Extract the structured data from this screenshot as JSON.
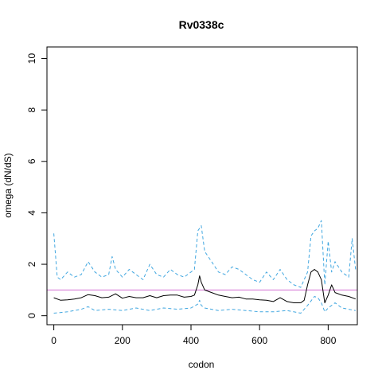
{
  "chart_data": {
    "type": "line",
    "title": "Rv0338c",
    "xlabel": "codon",
    "ylabel": "omega (dN/dS)",
    "xlim": [
      -20,
      885
    ],
    "ylim": [
      -0.35,
      10.45
    ],
    "xticks": [
      0,
      200,
      400,
      600,
      800
    ],
    "yticks": [
      0,
      2,
      4,
      6,
      8,
      10
    ],
    "reference_line": {
      "y": 1,
      "color": "#d36fd3"
    },
    "series": [
      {
        "role": "estimate",
        "color": "#000000",
        "style": "solid",
        "x": [
          0,
          20,
          40,
          60,
          80,
          100,
          120,
          140,
          160,
          180,
          200,
          220,
          240,
          260,
          280,
          300,
          320,
          340,
          360,
          380,
          400,
          410,
          420,
          425,
          430,
          440,
          460,
          480,
          500,
          520,
          540,
          560,
          580,
          600,
          620,
          640,
          660,
          680,
          700,
          720,
          730,
          740,
          750,
          760,
          770,
          780,
          790,
          800,
          810,
          820,
          840,
          860,
          880
        ],
        "y": [
          0.7,
          0.6,
          0.62,
          0.65,
          0.7,
          0.82,
          0.78,
          0.7,
          0.72,
          0.85,
          0.68,
          0.75,
          0.7,
          0.7,
          0.78,
          0.7,
          0.78,
          0.8,
          0.8,
          0.72,
          0.75,
          0.8,
          1.2,
          1.55,
          1.3,
          1.0,
          0.9,
          0.8,
          0.75,
          0.7,
          0.72,
          0.65,
          0.65,
          0.62,
          0.6,
          0.55,
          0.7,
          0.55,
          0.5,
          0.5,
          0.6,
          1.2,
          1.7,
          1.8,
          1.7,
          1.4,
          0.5,
          0.8,
          1.2,
          0.9,
          0.8,
          0.75,
          0.65
        ]
      },
      {
        "role": "upper bound",
        "color": "#41a7e0",
        "style": "dashed",
        "x": [
          0,
          10,
          20,
          40,
          60,
          80,
          100,
          120,
          140,
          160,
          170,
          180,
          200,
          220,
          240,
          260,
          280,
          300,
          320,
          340,
          360,
          380,
          400,
          410,
          420,
          430,
          440,
          460,
          480,
          500,
          520,
          540,
          560,
          580,
          600,
          620,
          640,
          660,
          680,
          700,
          720,
          740,
          750,
          760,
          770,
          780,
          790,
          800,
          810,
          820,
          840,
          860,
          870,
          880
        ],
        "y": [
          3.2,
          1.5,
          1.4,
          1.7,
          1.5,
          1.6,
          2.1,
          1.7,
          1.5,
          1.6,
          2.3,
          1.8,
          1.5,
          1.8,
          1.6,
          1.4,
          2.0,
          1.6,
          1.5,
          1.8,
          1.6,
          1.5,
          1.7,
          1.8,
          3.3,
          3.5,
          2.5,
          2.1,
          1.7,
          1.6,
          1.9,
          1.8,
          1.6,
          1.4,
          1.3,
          1.7,
          1.4,
          1.8,
          1.4,
          1.2,
          1.1,
          1.7,
          3.1,
          3.3,
          3.4,
          3.7,
          1.2,
          2.9,
          1.7,
          2.1,
          1.7,
          1.5,
          3.0,
          1.8
        ]
      },
      {
        "role": "lower bound",
        "color": "#41a7e0",
        "style": "dashed",
        "x": [
          0,
          40,
          80,
          100,
          120,
          160,
          200,
          240,
          280,
          320,
          360,
          400,
          420,
          425,
          430,
          440,
          480,
          520,
          560,
          600,
          640,
          680,
          720,
          740,
          760,
          770,
          780,
          790,
          800,
          820,
          840,
          860,
          880
        ],
        "y": [
          0.1,
          0.15,
          0.25,
          0.35,
          0.2,
          0.25,
          0.2,
          0.3,
          0.2,
          0.3,
          0.25,
          0.3,
          0.45,
          0.6,
          0.4,
          0.3,
          0.2,
          0.25,
          0.2,
          0.15,
          0.15,
          0.2,
          0.1,
          0.4,
          0.75,
          0.7,
          0.5,
          0.15,
          0.3,
          0.5,
          0.3,
          0.25,
          0.2
        ]
      }
    ]
  }
}
